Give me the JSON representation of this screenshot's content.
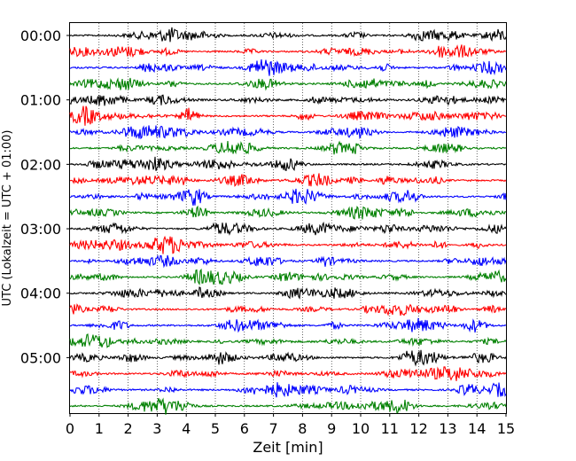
{
  "chart_data": {
    "type": "line",
    "title": "",
    "xlabel": "Zeit  [min]",
    "ylabel": "UTC (Lokalzeit = UTC + 01:00)",
    "xlim": [
      0,
      15
    ],
    "x_ticks": [
      "0",
      "1",
      "2",
      "3",
      "4",
      "5",
      "6",
      "7",
      "8",
      "9",
      "10",
      "11",
      "12",
      "13",
      "14",
      "15"
    ],
    "row_interval_min": 15,
    "y_tick_labels": [
      "00:00",
      "01:00",
      "02:00",
      "03:00",
      "04:00",
      "05:00"
    ],
    "grid": "vertical dotted",
    "colors": [
      "#000000",
      "#ff0000",
      "#0000ff",
      "#008000"
    ],
    "rows": [
      "00:00",
      "00:15",
      "00:30",
      "00:45",
      "01:00",
      "01:15",
      "01:30",
      "01:45",
      "02:00",
      "02:15",
      "02:30",
      "02:45",
      "03:00",
      "03:15",
      "03:30",
      "03:45",
      "04:00",
      "04:15",
      "04:30",
      "04:45",
      "05:00",
      "05:15",
      "05:30",
      "05:45"
    ]
  }
}
